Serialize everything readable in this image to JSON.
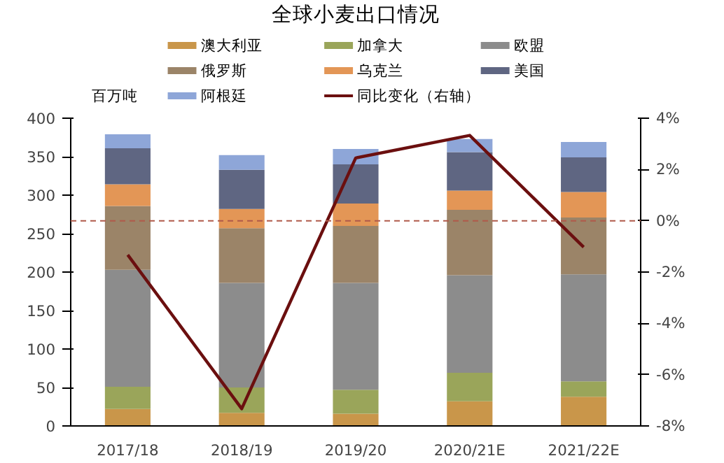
{
  "chart_data": {
    "type": "bar",
    "title": "全球小麦出口情况",
    "ylabel": "百万吨",
    "stacked": true,
    "categories": [
      "2017/18",
      "2018/19",
      "2019/20",
      "2020/21E",
      "2021/22E"
    ],
    "series": [
      {
        "name": "澳大利亚",
        "color": "#c9964a",
        "values": [
          22,
          17,
          16,
          32,
          38
        ]
      },
      {
        "name": "加拿大",
        "color": "#9aa55a",
        "values": [
          29,
          33,
          31,
          37,
          20
        ]
      },
      {
        "name": "欧盟",
        "color": "#8c8c8c",
        "values": [
          152,
          136,
          139,
          127,
          139
        ]
      },
      {
        "name": "俄罗斯",
        "color": "#9b8468",
        "values": [
          83,
          71,
          74,
          85,
          74
        ]
      },
      {
        "name": "乌克兰",
        "color": "#e39656",
        "values": [
          28,
          25,
          29,
          25,
          33
        ]
      },
      {
        "name": "美国",
        "color": "#5f6682",
        "values": [
          47,
          51,
          51,
          50,
          45
        ]
      },
      {
        "name": "阿根廷",
        "color": "#8ea6d8",
        "values": [
          18,
          19,
          20,
          17,
          20
        ]
      },
      {
        "name": "同比变化（右轴）",
        "type": "line",
        "axis": "y2",
        "color": "#6b0f0f",
        "values": [
          -1.33,
          -7.33,
          2.45,
          3.33,
          -1.03
        ]
      }
    ],
    "ylim": [
      0,
      400
    ],
    "yticks": [
      0,
      50,
      100,
      150,
      200,
      250,
      300,
      350,
      400
    ],
    "y2lim": [
      -8,
      4
    ],
    "y2ticks": [
      {
        "value": -8,
        "label": "-8%"
      },
      {
        "value": -6,
        "label": "-6%"
      },
      {
        "value": -4,
        "label": "-4%"
      },
      {
        "value": -2,
        "label": "-2%"
      },
      {
        "value": 0,
        "label": "0%"
      },
      {
        "value": 2,
        "label": "2%"
      },
      {
        "value": 4,
        "label": "4%"
      }
    ],
    "ref_lines": [
      {
        "axis": "y2",
        "value": 0,
        "color": "#b05a4a",
        "line_style": "dashed"
      }
    ],
    "grid": false,
    "legend": "top"
  }
}
